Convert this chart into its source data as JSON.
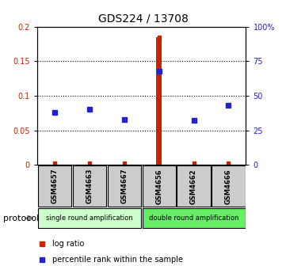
{
  "title": "GDS224 / 13708",
  "samples": [
    "GSM4657",
    "GSM4663",
    "GSM4667",
    "GSM4656",
    "GSM4662",
    "GSM4666"
  ],
  "log_ratio": [
    0.005,
    0.005,
    0.005,
    0.185,
    0.005,
    0.005
  ],
  "percentile_rank": [
    38,
    40,
    33,
    68,
    32,
    43
  ],
  "highlighted_sample_index": 3,
  "groups": [
    {
      "label": "single round amplification",
      "start": 0,
      "end": 3,
      "color": "#ccffcc"
    },
    {
      "label": "double round amplification",
      "start": 3,
      "end": 6,
      "color": "#66ee66"
    }
  ],
  "ylim_left": [
    0,
    0.2
  ],
  "ylim_right": [
    0,
    100
  ],
  "yticks_left": [
    0,
    0.05,
    0.1,
    0.15,
    0.2
  ],
  "ytick_labels_left": [
    "0",
    "0.05",
    "0.1",
    "0.15",
    "0.2"
  ],
  "yticks_right": [
    0,
    25,
    50,
    75,
    100
  ],
  "ytick_labels_right": [
    "0",
    "25",
    "50",
    "75",
    "100%"
  ],
  "log_ratio_color": "#cc2200",
  "percentile_color": "#2222cc",
  "highlight_bar_color": "#cc2200",
  "sample_box_color": "#cccccc",
  "legend_log_ratio_color": "#cc2200",
  "legend_percentile_color": "#2222cc",
  "bg_color": "white",
  "dotted_grid_color": "#000000"
}
